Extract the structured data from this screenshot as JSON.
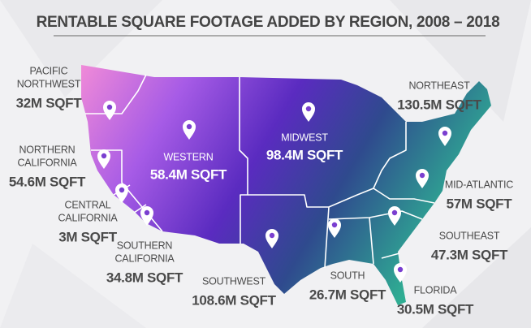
{
  "header": {
    "title": "RENTABLE SQUARE FOOTAGE ADDED BY REGION, 2008 – 2018"
  },
  "regions": [
    {
      "name": [
        "PACIFIC",
        "NORTHWEST"
      ],
      "value": "32M SQFT"
    },
    {
      "name": [
        "NORTHERN",
        "CALIFORNIA"
      ],
      "value": "54.6M SQFT"
    },
    {
      "name": [
        "CENTRAL",
        "CALIFORNIA"
      ],
      "value": "3M SQFT"
    },
    {
      "name": [
        "SOUTHERN",
        "CALIFORNIA"
      ],
      "value": "34.8M SQFT"
    },
    {
      "name": [
        "WESTERN"
      ],
      "value": "58.4M SQFT"
    },
    {
      "name": [
        "MIDWEST"
      ],
      "value": "98.4M SQFT"
    },
    {
      "name": [
        "SOUTHWEST"
      ],
      "value": "108.6M SQFT"
    },
    {
      "name": [
        "SOUTH"
      ],
      "value": "26.7M SQFT"
    },
    {
      "name": [
        "NORTHEAST"
      ],
      "value": "130.5M SQFT"
    },
    {
      "name": [
        "MID-ATLANTIC"
      ],
      "value": "57M SQFT"
    },
    {
      "name": [
        "SOUTHEAST"
      ],
      "value": "47.3M SQFT"
    },
    {
      "name": [
        "FLORIDA"
      ],
      "value": "30.5M SQFT"
    }
  ]
}
